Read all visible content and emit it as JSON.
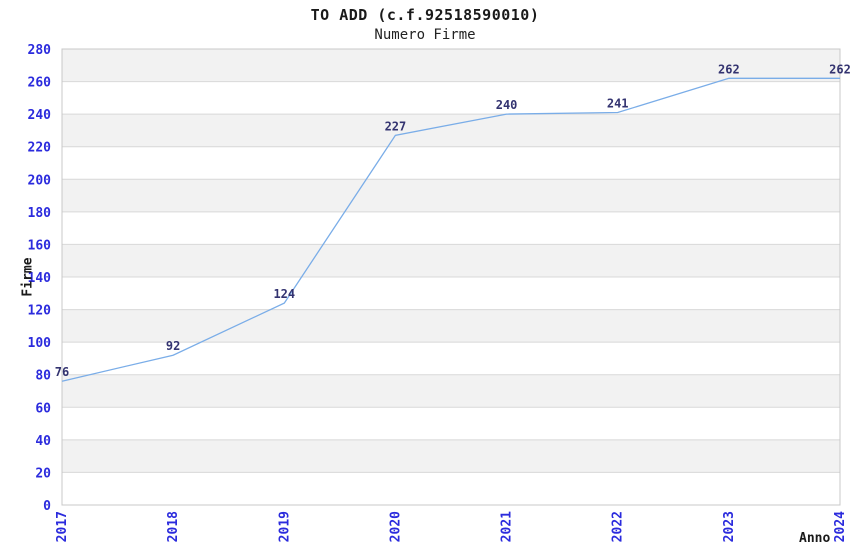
{
  "chart_data": {
    "type": "line",
    "title": "TO ADD (c.f.92518590010)",
    "subtitle": "Numero Firme",
    "xlabel": "Anno",
    "ylabel": "Firme",
    "categories": [
      "2017",
      "2018",
      "2019",
      "2020",
      "2021",
      "2022",
      "2023",
      "2024"
    ],
    "series": [
      {
        "name": "Numero Firme",
        "values": [
          76,
          92,
          124,
          227,
          240,
          241,
          262,
          262
        ]
      }
    ],
    "ylim": [
      0,
      280
    ],
    "ytick_step": 20,
    "grid": true,
    "legend_position": "none",
    "colors": {
      "line": "#7aade8",
      "tick_label": "#2b2bdd",
      "data_label": "#333370",
      "band_gray": "#f2f2f2",
      "band_white": "#ffffff",
      "gridline": "#d8d8d8",
      "plot_border": "#c8c8c8",
      "title": "#1a1a1a",
      "axis_title": "#1a1a1a"
    }
  }
}
